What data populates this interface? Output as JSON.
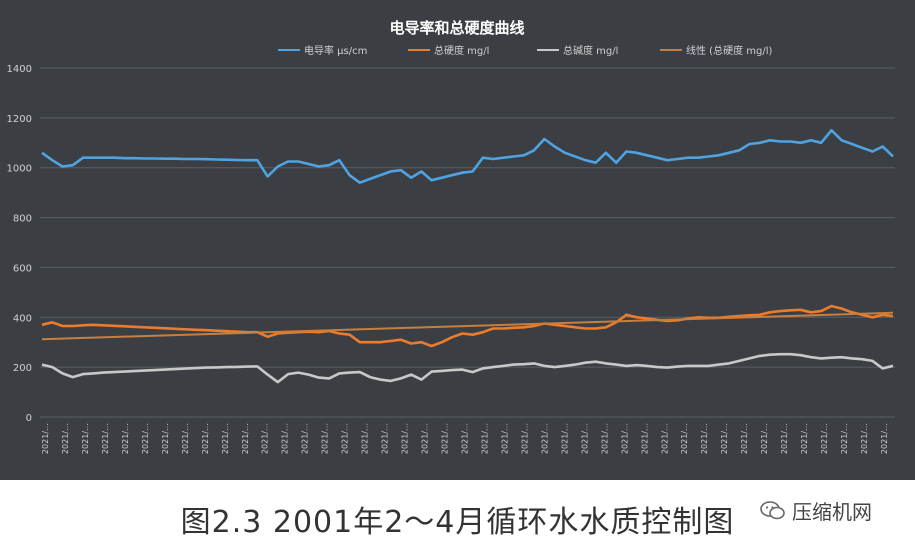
{
  "chart_data": {
    "type": "line",
    "title": "电导率和总硬度曲线",
    "ylim": [
      0,
      1400
    ],
    "yticks": [
      0,
      200,
      400,
      600,
      800,
      1000,
      1200,
      1400
    ],
    "x_tick_label": "2021/…",
    "x_tick_count": 43,
    "grid": true,
    "legend_position": "top",
    "series": [
      {
        "name": "电导率 μs/cm",
        "color": "#4fa3e0",
        "values": [
          1060,
          1030,
          1005,
          1010,
          1040,
          1040,
          1040,
          1040,
          1038,
          1038,
          1037,
          1037,
          1036,
          1036,
          1035,
          1035,
          1034,
          1033,
          1032,
          1031,
          1030,
          1030,
          965,
          1005,
          1025,
          1025,
          1015,
          1005,
          1010,
          1030,
          970,
          940,
          955,
          970,
          985,
          990,
          960,
          985,
          950,
          960,
          970,
          980,
          985,
          1040,
          1035,
          1040,
          1045,
          1050,
          1070,
          1115,
          1085,
          1060,
          1045,
          1030,
          1020,
          1060,
          1020,
          1065,
          1060,
          1050,
          1040,
          1030,
          1035,
          1040,
          1040,
          1045,
          1050,
          1060,
          1070,
          1095,
          1100,
          1110,
          1105,
          1105,
          1100,
          1110,
          1100,
          1150,
          1110,
          1095,
          1080,
          1065,
          1085,
          1045
        ]
      },
      {
        "name": "总硬度 mg/l",
        "color": "#ec7b2c",
        "values": [
          370,
          380,
          365,
          365,
          368,
          370,
          368,
          366,
          364,
          362,
          360,
          358,
          356,
          354,
          352,
          350,
          348,
          346,
          344,
          342,
          340,
          340,
          322,
          335,
          338,
          340,
          342,
          340,
          345,
          335,
          330,
          300,
          300,
          300,
          305,
          310,
          295,
          300,
          285,
          300,
          320,
          335,
          330,
          340,
          355,
          355,
          358,
          360,
          365,
          375,
          370,
          365,
          360,
          355,
          355,
          360,
          380,
          410,
          400,
          395,
          390,
          385,
          388,
          395,
          400,
          398,
          398,
          402,
          405,
          408,
          410,
          420,
          425,
          428,
          430,
          420,
          425,
          445,
          435,
          420,
          410,
          400,
          410,
          405
        ]
      },
      {
        "name": "总碱度 mg/l",
        "color": "#c8c8c8",
        "values": [
          210,
          200,
          175,
          160,
          172,
          175,
          178,
          180,
          182,
          184,
          186,
          188,
          190,
          192,
          194,
          196,
          198,
          199,
          200,
          201,
          202,
          203,
          170,
          140,
          172,
          178,
          170,
          158,
          155,
          175,
          178,
          180,
          160,
          150,
          145,
          155,
          170,
          150,
          182,
          185,
          188,
          190,
          180,
          195,
          200,
          205,
          210,
          212,
          215,
          205,
          200,
          205,
          210,
          218,
          222,
          215,
          210,
          205,
          208,
          205,
          200,
          198,
          202,
          205,
          205,
          205,
          210,
          215,
          225,
          235,
          245,
          250,
          252,
          252,
          248,
          240,
          235,
          238,
          240,
          235,
          232,
          225,
          195,
          205
        ]
      },
      {
        "name": "线性 (总硬度 mg/l)",
        "color": "#c57f3e",
        "values": [
          312,
          418
        ]
      }
    ]
  },
  "caption": "图2.3 2001年2～4月循环水水质控制图",
  "watermark": "压缩机网"
}
